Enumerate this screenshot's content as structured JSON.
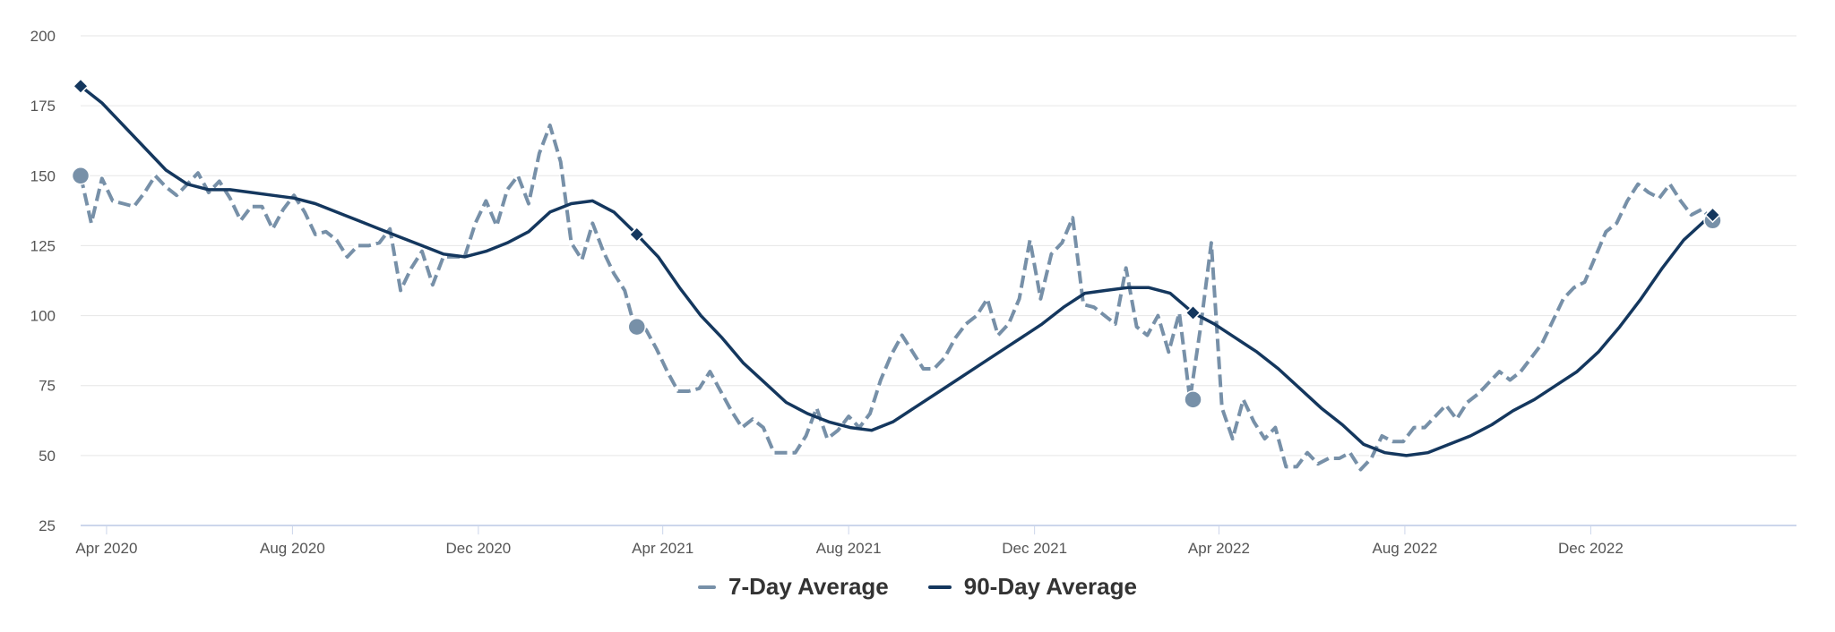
{
  "chart_data": {
    "type": "line",
    "title": "",
    "xlabel": "",
    "ylabel": "",
    "ylim": [
      25,
      200
    ],
    "y_ticks": [
      25,
      50,
      75,
      100,
      125,
      150,
      175,
      200
    ],
    "x_range": [
      "2020-03-15",
      "2023-04-15"
    ],
    "x_ticks": [
      {
        "date": "2020-04-01",
        "label": "Apr 2020"
      },
      {
        "date": "2020-08-01",
        "label": "Aug 2020"
      },
      {
        "date": "2020-12-01",
        "label": "Dec 2020"
      },
      {
        "date": "2021-04-01",
        "label": "Apr 2021"
      },
      {
        "date": "2021-08-01",
        "label": "Aug 2021"
      },
      {
        "date": "2021-12-01",
        "label": "Dec 2021"
      },
      {
        "date": "2022-04-01",
        "label": "Apr 2022"
      },
      {
        "date": "2022-08-01",
        "label": "Aug 2022"
      },
      {
        "date": "2022-12-01",
        "label": "Dec 2022"
      }
    ],
    "grid": true,
    "legend_position": "bottom-center",
    "series": [
      {
        "name": "7-Day Average",
        "color": "#7790a8",
        "style": "dashed",
        "marker": "circle",
        "points": [
          [
            "2020-03-15",
            150
          ],
          [
            "2020-03-22",
            133
          ],
          [
            "2020-03-29",
            149
          ],
          [
            "2020-04-05",
            141
          ],
          [
            "2020-04-12",
            140
          ],
          [
            "2020-04-19",
            139
          ],
          [
            "2020-04-26",
            144
          ],
          [
            "2020-05-03",
            150
          ],
          [
            "2020-05-10",
            146
          ],
          [
            "2020-05-17",
            143
          ],
          [
            "2020-05-24",
            147
          ],
          [
            "2020-05-31",
            151
          ],
          [
            "2020-06-07",
            144
          ],
          [
            "2020-06-14",
            148
          ],
          [
            "2020-06-21",
            142
          ],
          [
            "2020-06-28",
            134
          ],
          [
            "2020-07-05",
            139
          ],
          [
            "2020-07-12",
            139
          ],
          [
            "2020-07-19",
            131
          ],
          [
            "2020-07-26",
            138
          ],
          [
            "2020-08-02",
            143
          ],
          [
            "2020-08-09",
            137
          ],
          [
            "2020-08-16",
            129
          ],
          [
            "2020-08-23",
            130
          ],
          [
            "2020-08-30",
            127
          ],
          [
            "2020-09-06",
            121
          ],
          [
            "2020-09-13",
            125
          ],
          [
            "2020-09-20",
            125
          ],
          [
            "2020-09-27",
            126
          ],
          [
            "2020-10-04",
            131
          ],
          [
            "2020-10-11",
            109
          ],
          [
            "2020-10-18",
            117
          ],
          [
            "2020-10-25",
            123
          ],
          [
            "2020-11-01",
            111
          ],
          [
            "2020-11-08",
            121
          ],
          [
            "2020-11-15",
            121
          ],
          [
            "2020-11-22",
            121
          ],
          [
            "2020-11-29",
            133
          ],
          [
            "2020-12-06",
            141
          ],
          [
            "2020-12-13",
            132
          ],
          [
            "2020-12-20",
            145
          ],
          [
            "2020-12-27",
            150
          ],
          [
            "2021-01-03",
            140
          ],
          [
            "2021-01-10",
            158
          ],
          [
            "2021-01-17",
            168
          ],
          [
            "2021-01-24",
            155
          ],
          [
            "2021-01-31",
            126
          ],
          [
            "2021-02-07",
            120
          ],
          [
            "2021-02-14",
            133
          ],
          [
            "2021-02-21",
            123
          ],
          [
            "2021-02-28",
            115
          ],
          [
            "2021-03-07",
            109
          ],
          [
            "2021-03-14",
            95
          ],
          [
            "2021-03-21",
            95
          ],
          [
            "2021-03-28",
            88
          ],
          [
            "2021-04-04",
            80
          ],
          [
            "2021-04-11",
            73
          ],
          [
            "2021-04-18",
            73
          ],
          [
            "2021-04-25",
            74
          ],
          [
            "2021-05-02",
            80
          ],
          [
            "2021-05-09",
            73
          ],
          [
            "2021-05-16",
            66
          ],
          [
            "2021-05-23",
            60
          ],
          [
            "2021-05-30",
            63
          ],
          [
            "2021-06-06",
            60
          ],
          [
            "2021-06-13",
            51
          ],
          [
            "2021-06-20",
            51
          ],
          [
            "2021-06-27",
            51
          ],
          [
            "2021-07-04",
            57
          ],
          [
            "2021-07-11",
            67
          ],
          [
            "2021-07-18",
            56
          ],
          [
            "2021-07-25",
            59
          ],
          [
            "2021-08-01",
            64
          ],
          [
            "2021-08-08",
            60
          ],
          [
            "2021-08-15",
            65
          ],
          [
            "2021-08-22",
            77
          ],
          [
            "2021-08-29",
            86
          ],
          [
            "2021-09-05",
            93
          ],
          [
            "2021-09-12",
            87
          ],
          [
            "2021-09-19",
            81
          ],
          [
            "2021-09-26",
            81
          ],
          [
            "2021-10-03",
            85
          ],
          [
            "2021-10-10",
            92
          ],
          [
            "2021-10-17",
            97
          ],
          [
            "2021-10-24",
            100
          ],
          [
            "2021-10-31",
            106
          ],
          [
            "2021-11-07",
            93
          ],
          [
            "2021-11-14",
            97
          ],
          [
            "2021-11-21",
            106
          ],
          [
            "2021-11-28",
            127
          ],
          [
            "2021-12-05",
            106
          ],
          [
            "2021-12-12",
            122
          ],
          [
            "2021-12-19",
            126
          ],
          [
            "2021-12-26",
            135
          ],
          [
            "2022-01-02",
            104
          ],
          [
            "2022-01-09",
            103
          ],
          [
            "2022-01-16",
            100
          ],
          [
            "2022-01-23",
            97
          ],
          [
            "2022-01-30",
            117
          ],
          [
            "2022-02-06",
            96
          ],
          [
            "2022-02-13",
            93
          ],
          [
            "2022-02-20",
            100
          ],
          [
            "2022-02-27",
            87
          ],
          [
            "2022-03-06",
            101
          ],
          [
            "2022-03-13",
            70
          ],
          [
            "2022-03-20",
            96
          ],
          [
            "2022-03-27",
            126
          ],
          [
            "2022-04-03",
            67
          ],
          [
            "2022-04-10",
            56
          ],
          [
            "2022-04-17",
            70
          ],
          [
            "2022-04-24",
            62
          ],
          [
            "2022-05-01",
            56
          ],
          [
            "2022-05-08",
            60
          ],
          [
            "2022-05-15",
            46
          ],
          [
            "2022-05-22",
            46
          ],
          [
            "2022-05-29",
            51
          ],
          [
            "2022-06-05",
            47
          ],
          [
            "2022-06-12",
            49
          ],
          [
            "2022-06-19",
            49
          ],
          [
            "2022-06-26",
            51
          ],
          [
            "2022-07-03",
            45
          ],
          [
            "2022-07-10",
            49
          ],
          [
            "2022-07-17",
            57
          ],
          [
            "2022-07-24",
            55
          ],
          [
            "2022-07-31",
            55
          ],
          [
            "2022-08-07",
            60
          ],
          [
            "2022-08-14",
            60
          ],
          [
            "2022-08-21",
            64
          ],
          [
            "2022-08-28",
            68
          ],
          [
            "2022-09-04",
            63
          ],
          [
            "2022-09-11",
            69
          ],
          [
            "2022-09-18",
            72
          ],
          [
            "2022-09-25",
            76
          ],
          [
            "2022-10-02",
            80
          ],
          [
            "2022-10-09",
            77
          ],
          [
            "2022-10-16",
            80
          ],
          [
            "2022-10-23",
            85
          ],
          [
            "2022-10-30",
            90
          ],
          [
            "2022-11-06",
            98
          ],
          [
            "2022-11-13",
            106
          ],
          [
            "2022-11-20",
            110
          ],
          [
            "2022-11-27",
            112
          ],
          [
            "2022-12-04",
            121
          ],
          [
            "2022-12-11",
            130
          ],
          [
            "2022-12-18",
            133
          ],
          [
            "2022-12-25",
            141
          ],
          [
            "2023-01-01",
            147
          ],
          [
            "2023-01-08",
            144
          ],
          [
            "2023-01-15",
            142
          ],
          [
            "2023-01-22",
            147
          ],
          [
            "2023-01-29",
            141
          ],
          [
            "2023-02-05",
            136
          ],
          [
            "2023-02-12",
            138
          ],
          [
            "2023-02-19",
            134
          ]
        ],
        "markers": [
          [
            "2020-03-15",
            150
          ],
          [
            "2021-03-15",
            96
          ],
          [
            "2022-03-15",
            70
          ],
          [
            "2023-02-19",
            134
          ]
        ]
      },
      {
        "name": "90-Day Average",
        "color": "#14375e",
        "style": "solid",
        "marker": "diamond",
        "points": [
          [
            "2020-03-15",
            182
          ],
          [
            "2020-03-29",
            176
          ],
          [
            "2020-04-12",
            168
          ],
          [
            "2020-04-26",
            160
          ],
          [
            "2020-05-10",
            152
          ],
          [
            "2020-05-24",
            147
          ],
          [
            "2020-06-07",
            145
          ],
          [
            "2020-06-21",
            145
          ],
          [
            "2020-07-05",
            144
          ],
          [
            "2020-07-19",
            143
          ],
          [
            "2020-08-02",
            142
          ],
          [
            "2020-08-16",
            140
          ],
          [
            "2020-08-30",
            137
          ],
          [
            "2020-09-13",
            134
          ],
          [
            "2020-09-27",
            131
          ],
          [
            "2020-10-11",
            128
          ],
          [
            "2020-10-25",
            125
          ],
          [
            "2020-11-08",
            122
          ],
          [
            "2020-11-22",
            121
          ],
          [
            "2020-12-06",
            123
          ],
          [
            "2020-12-20",
            126
          ],
          [
            "2021-01-03",
            130
          ],
          [
            "2021-01-17",
            137
          ],
          [
            "2021-01-31",
            140
          ],
          [
            "2021-02-14",
            141
          ],
          [
            "2021-02-28",
            137
          ],
          [
            "2021-03-15",
            129
          ],
          [
            "2021-03-29",
            121
          ],
          [
            "2021-04-12",
            110
          ],
          [
            "2021-04-26",
            100
          ],
          [
            "2021-05-10",
            92
          ],
          [
            "2021-05-24",
            83
          ],
          [
            "2021-06-07",
            76
          ],
          [
            "2021-06-21",
            69
          ],
          [
            "2021-07-05",
            65
          ],
          [
            "2021-07-19",
            62
          ],
          [
            "2021-08-02",
            60
          ],
          [
            "2021-08-16",
            59
          ],
          [
            "2021-08-30",
            62
          ],
          [
            "2021-09-13",
            67
          ],
          [
            "2021-09-27",
            72
          ],
          [
            "2021-10-11",
            77
          ],
          [
            "2021-10-25",
            82
          ],
          [
            "2021-11-08",
            87
          ],
          [
            "2021-11-22",
            92
          ],
          [
            "2021-12-06",
            97
          ],
          [
            "2021-12-20",
            103
          ],
          [
            "2022-01-03",
            108
          ],
          [
            "2022-01-17",
            109
          ],
          [
            "2022-01-31",
            110
          ],
          [
            "2022-02-14",
            110
          ],
          [
            "2022-02-28",
            108
          ],
          [
            "2022-03-15",
            101
          ],
          [
            "2022-03-29",
            97
          ],
          [
            "2022-04-12",
            92
          ],
          [
            "2022-04-26",
            87
          ],
          [
            "2022-05-10",
            81
          ],
          [
            "2022-05-24",
            74
          ],
          [
            "2022-06-07",
            67
          ],
          [
            "2022-06-21",
            61
          ],
          [
            "2022-07-05",
            54
          ],
          [
            "2022-07-19",
            51
          ],
          [
            "2022-08-02",
            50
          ],
          [
            "2022-08-16",
            51
          ],
          [
            "2022-08-30",
            54
          ],
          [
            "2022-09-13",
            57
          ],
          [
            "2022-09-27",
            61
          ],
          [
            "2022-10-11",
            66
          ],
          [
            "2022-10-25",
            70
          ],
          [
            "2022-11-08",
            75
          ],
          [
            "2022-11-22",
            80
          ],
          [
            "2022-12-06",
            87
          ],
          [
            "2022-12-20",
            96
          ],
          [
            "2023-01-03",
            106
          ],
          [
            "2023-01-17",
            117
          ],
          [
            "2023-01-31",
            127
          ],
          [
            "2023-02-14",
            134
          ],
          [
            "2023-02-19",
            136
          ]
        ],
        "markers": [
          [
            "2020-03-15",
            182
          ],
          [
            "2021-03-15",
            129
          ],
          [
            "2022-03-15",
            101
          ],
          [
            "2023-02-19",
            136
          ]
        ]
      }
    ]
  }
}
